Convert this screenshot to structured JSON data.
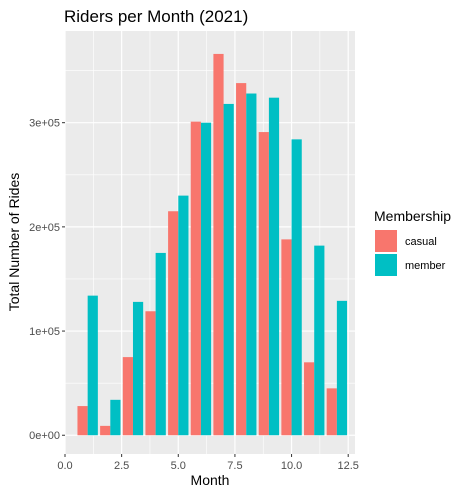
{
  "chart_data": {
    "type": "bar",
    "title": "Riders per Month (2021)",
    "xlabel": "Month",
    "ylabel": "Total Number of Rides",
    "xlim": [
      0,
      12.8
    ],
    "ylim": [
      -18000,
      388000
    ],
    "x_ticks": [
      {
        "value": 0,
        "label": "0.0"
      },
      {
        "value": 2.5,
        "label": "2.5"
      },
      {
        "value": 5,
        "label": "5.0"
      },
      {
        "value": 7.5,
        "label": "7.5"
      },
      {
        "value": 10,
        "label": "10.0"
      },
      {
        "value": 12.5,
        "label": "12.5"
      }
    ],
    "y_ticks": [
      {
        "value": 0,
        "label": "0e+00"
      },
      {
        "value": 100000,
        "label": "1e+05"
      },
      {
        "value": 200000,
        "label": "2e+05"
      },
      {
        "value": 300000,
        "label": "3e+05"
      }
    ],
    "grid": true,
    "legend": {
      "title": "Membership",
      "position": "right"
    },
    "categories": [
      1,
      2,
      3,
      4,
      5,
      6,
      7,
      8,
      9,
      10,
      11,
      12
    ],
    "series": [
      {
        "name": "casual",
        "color": "#F8766D",
        "values": [
          28000,
          9000,
          75000,
          119000,
          215000,
          301000,
          366000,
          338000,
          291000,
          188000,
          70000,
          45000
        ]
      },
      {
        "name": "member",
        "color": "#00BFC4",
        "values": [
          134000,
          34000,
          128000,
          175000,
          230000,
          300000,
          318000,
          328000,
          324000,
          284000,
          182000,
          129000
        ]
      }
    ],
    "colors": {
      "panel_background": "#EBEBEB",
      "grid_line": "#FFFFFF"
    }
  }
}
